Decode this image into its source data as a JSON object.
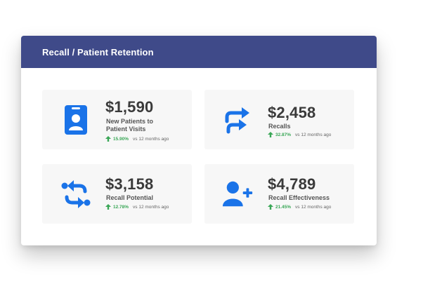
{
  "panel": {
    "title": "Recall / Patient Retention"
  },
  "colors": {
    "header": "#3f4a89",
    "icon": "#1a73e8",
    "positive": "#3aa757"
  },
  "cards": [
    {
      "icon": "id-badge-icon",
      "value": "$1,590",
      "label_line1": "New Patients to",
      "label_line2": "Patient Visits",
      "change": "15.90%",
      "comparison": "vs 12 months ago"
    },
    {
      "icon": "forward-arrows-icon",
      "value": "$2,458",
      "label": "Recalls",
      "change": "32.87%",
      "comparison": "vs 12 months ago"
    },
    {
      "icon": "exchange-arrows-icon",
      "value": "$3,158",
      "label": "Recall Potential",
      "change": "12.78%",
      "comparison": "vs 12 months ago"
    },
    {
      "icon": "add-user-icon",
      "value": "$4,789",
      "label": "Recall Effectiveness",
      "change": "21.45%",
      "comparison": "vs 12 months ago"
    }
  ]
}
